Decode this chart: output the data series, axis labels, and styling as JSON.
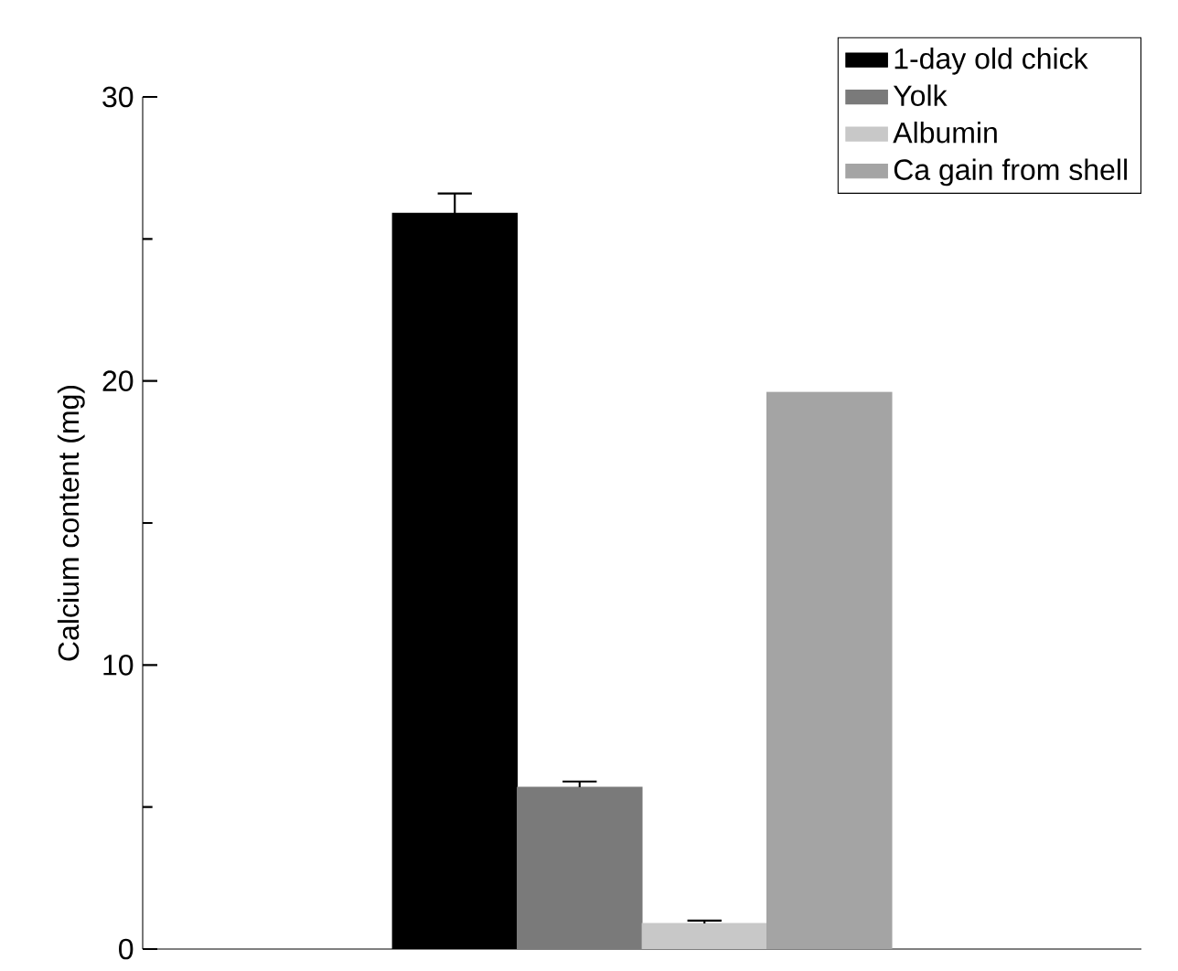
{
  "chart_data": {
    "type": "bar",
    "ylabel": "Calcium content (mg)",
    "categories": [
      null,
      null,
      null,
      null,
      null,
      null,
      null,
      null
    ],
    "series": [
      {
        "name": "1-day old chick",
        "color": "#000000",
        "values": [
          null,
          null,
          25.9,
          null,
          null,
          null,
          null,
          null
        ],
        "errors": [
          null,
          null,
          0.7,
          null,
          null,
          null,
          null,
          null
        ]
      },
      {
        "name": "Yolk",
        "color": "#7a7a7a",
        "values": [
          null,
          null,
          null,
          5.7,
          null,
          null,
          null,
          null
        ],
        "errors": [
          null,
          null,
          null,
          0.2,
          null,
          null,
          null,
          null
        ]
      },
      {
        "name": "Albumin",
        "color": "#c8c8c8",
        "values": [
          null,
          null,
          null,
          null,
          0.9,
          null,
          null,
          null
        ],
        "errors": [
          null,
          null,
          null,
          null,
          0.1,
          null,
          null,
          null
        ]
      },
      {
        "name": "Ca gain from shell",
        "color": "#a4a4a4",
        "values": [
          null,
          null,
          null,
          null,
          null,
          19.6,
          null,
          null
        ]
      }
    ],
    "ylim": [
      0,
      30
    ],
    "yticks": [
      0,
      10,
      20,
      30
    ],
    "legend": "top right",
    "grid": false
  }
}
